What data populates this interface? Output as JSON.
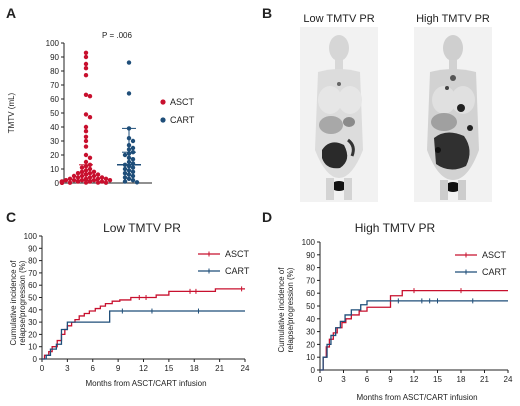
{
  "panels": {
    "a": {
      "letter": "A"
    },
    "b": {
      "letter": "B",
      "low_label": "Low TMTV PR",
      "high_label": "High TMTV PR"
    },
    "c": {
      "letter": "C"
    },
    "d": {
      "letter": "D"
    }
  },
  "colors": {
    "ASCT": "#c8102e",
    "CART": "#1f4e79"
  },
  "chart_data": [
    {
      "id": "A",
      "type": "scatter",
      "title": "",
      "annotation": "P = .006",
      "xlabel": "",
      "ylabel": "TMTV (mL)",
      "ylim": [
        0,
        100
      ],
      "yticks": [
        0,
        10,
        20,
        30,
        40,
        50,
        60,
        70,
        80,
        90,
        100
      ],
      "legend": "right",
      "series": [
        {
          "name": "ASCT",
          "median": 2,
          "iqr": [
            0.5,
            7
          ],
          "mean_ci_top": 13,
          "values": [
            93,
            90,
            85,
            82,
            77,
            63,
            62,
            49,
            47,
            40,
            37,
            33,
            30,
            26,
            20,
            18,
            15,
            13,
            12,
            11,
            10,
            9,
            8,
            8,
            7,
            7,
            6,
            6,
            5,
            5,
            5,
            4,
            4,
            4,
            3,
            3,
            3,
            3,
            2,
            2,
            2,
            2,
            2,
            1,
            1,
            1,
            1,
            1,
            1,
            1,
            0.5,
            0.5,
            0.5,
            0.5,
            0.3,
            0.3,
            0.2,
            0.2,
            0.1,
            0.1
          ]
        },
        {
          "name": "CART",
          "median": 13,
          "iqr": [
            5,
            22
          ],
          "mean_ci_top": 39,
          "values": [
            86,
            64,
            39,
            32,
            30,
            27,
            25,
            24,
            22,
            21,
            20,
            18,
            17,
            15,
            14,
            13,
            12,
            11,
            10,
            9,
            8,
            7,
            6,
            5,
            4,
            3,
            2,
            1,
            0.5
          ]
        }
      ]
    },
    {
      "id": "C",
      "type": "line",
      "title": "Low TMTV PR",
      "xlabel": "Months from ASCT/CART infusion",
      "ylabel_lines": [
        "Cumulative incidence of",
        "relapse/progression (%)"
      ],
      "xlim": [
        0,
        24
      ],
      "ylim": [
        0,
        100
      ],
      "xticks": [
        0,
        3,
        6,
        9,
        12,
        15,
        18,
        21,
        24
      ],
      "yticks": [
        0,
        10,
        20,
        30,
        40,
        50,
        60,
        70,
        80,
        90,
        100
      ],
      "legend": "top-right",
      "series": [
        {
          "name": "ASCT",
          "steps": [
            [
              0,
              0
            ],
            [
              0.3,
              3
            ],
            [
              0.8,
              6
            ],
            [
              1.2,
              10
            ],
            [
              1.8,
              15
            ],
            [
              2.3,
              20
            ],
            [
              2.7,
              24
            ],
            [
              3.0,
              27
            ],
            [
              3.5,
              30
            ],
            [
              3.9,
              32
            ],
            [
              4.4,
              35
            ],
            [
              5.0,
              37
            ],
            [
              5.6,
              39
            ],
            [
              6.3,
              41
            ],
            [
              6.9,
              43
            ],
            [
              7.5,
              45
            ],
            [
              8.3,
              47
            ],
            [
              9.2,
              48
            ],
            [
              10.5,
              50
            ],
            [
              13.5,
              52
            ],
            [
              15.0,
              55
            ],
            [
              20.5,
              57
            ],
            [
              24,
              57
            ]
          ],
          "censors": [
            11.5,
            12.3,
            17.5,
            18.2,
            23.6
          ]
        },
        {
          "name": "CART",
          "steps": [
            [
              0,
              0
            ],
            [
              0.5,
              3
            ],
            [
              1.0,
              8
            ],
            [
              1.7,
              12
            ],
            [
              2.3,
              24
            ],
            [
              3.0,
              30
            ],
            [
              8.0,
              39
            ],
            [
              24,
              39
            ]
          ],
          "censors": [
            9.5,
            13.0,
            18.5
          ]
        }
      ]
    },
    {
      "id": "D",
      "type": "line",
      "title": "High TMTV PR",
      "xlabel": "Months from ASCT/CART infusion",
      "ylabel_lines": [
        "Cumulative incidence of",
        "relapse/progression (%)"
      ],
      "xlim": [
        0,
        24
      ],
      "ylim": [
        0,
        100
      ],
      "xticks": [
        0,
        3,
        6,
        9,
        12,
        15,
        18,
        21,
        24
      ],
      "yticks": [
        0,
        10,
        20,
        30,
        40,
        50,
        60,
        70,
        80,
        90,
        100
      ],
      "legend": "top-right",
      "series": [
        {
          "name": "ASCT",
          "steps": [
            [
              0,
              0
            ],
            [
              0.4,
              10
            ],
            [
              0.8,
              18
            ],
            [
              1.2,
              24
            ],
            [
              1.7,
              29
            ],
            [
              2.2,
              33
            ],
            [
              2.8,
              37
            ],
            [
              3.3,
              40
            ],
            [
              4.0,
              43
            ],
            [
              5.0,
              46
            ],
            [
              6.0,
              49
            ],
            [
              9.0,
              58
            ],
            [
              10.5,
              62
            ],
            [
              24,
              62
            ]
          ],
          "censors": [
            12.0,
            18.0
          ]
        },
        {
          "name": "CART",
          "steps": [
            [
              0,
              0
            ],
            [
              0.4,
              10
            ],
            [
              0.9,
              20
            ],
            [
              1.4,
              27
            ],
            [
              2.0,
              33
            ],
            [
              2.6,
              38
            ],
            [
              3.2,
              43
            ],
            [
              4.0,
              47
            ],
            [
              5.2,
              51
            ],
            [
              6.0,
              54
            ],
            [
              24,
              54
            ]
          ],
          "censors": [
            10.0,
            13.0,
            14.0,
            15.0,
            19.5
          ]
        }
      ]
    }
  ]
}
